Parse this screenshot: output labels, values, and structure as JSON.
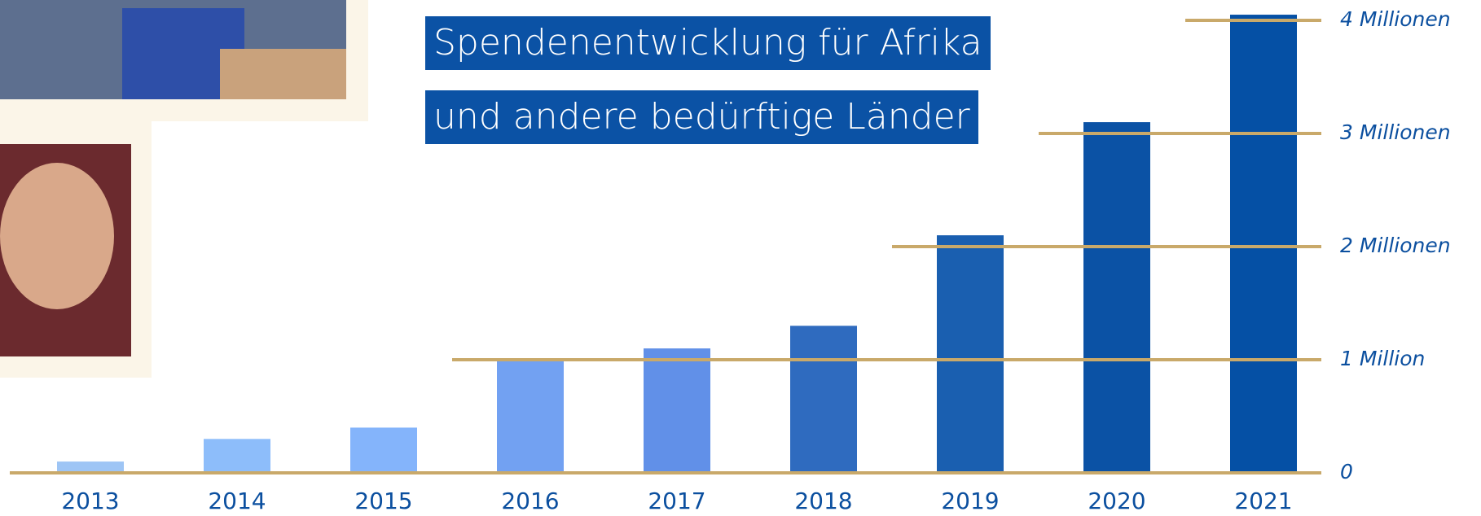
{
  "chart_data": {
    "type": "bar",
    "title": [
      "Spendenentwicklung für Afrika",
      "und andere bedürftige Länder"
    ],
    "categories": [
      "2013",
      "2014",
      "2015",
      "2016",
      "2017",
      "2018",
      "2019",
      "2020",
      "2021"
    ],
    "values": [
      100000,
      300000,
      400000,
      1000000,
      1100000,
      1300000,
      2100000,
      3100000,
      4050000
    ],
    "colors": [
      "#9ec5f5",
      "#8dbdfa",
      "#84b4fb",
      "#72a1f2",
      "#6190e8",
      "#2f6bbf",
      "#1a5fb0",
      "#0b52a5",
      "#0550a5"
    ],
    "ylim": [
      0,
      4050000
    ],
    "yticks": [
      0,
      {
        "value": 1000000,
        "label": "1 Million"
      },
      {
        "value": 2000000,
        "label": "2 Millionen"
      },
      {
        "value": 3000000,
        "label": "3 Millionen"
      },
      {
        "value": 4000000,
        "label": "4 Millionen"
      }
    ],
    "grid": true
  }
}
